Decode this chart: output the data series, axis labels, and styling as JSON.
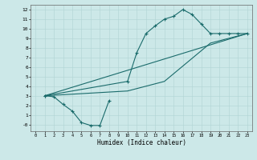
{
  "xlabel": "Humidex (Indice chaleur)",
  "bg_color": "#cce8e8",
  "grid_color": "#b0d4d4",
  "line_color": "#1a6b6b",
  "xlim": [
    -0.5,
    23.5
  ],
  "ylim": [
    -0.7,
    12.5
  ],
  "xticks": [
    0,
    1,
    2,
    3,
    4,
    5,
    6,
    7,
    8,
    9,
    10,
    11,
    12,
    13,
    14,
    15,
    16,
    17,
    18,
    19,
    20,
    21,
    22,
    23
  ],
  "yticks": [
    0,
    1,
    2,
    3,
    4,
    5,
    6,
    7,
    8,
    9,
    10,
    11,
    12
  ],
  "ytick_labels": [
    "-0",
    "1",
    "2",
    "3",
    "4",
    "5",
    "6",
    "7",
    "8",
    "9",
    "10",
    "11",
    "12"
  ],
  "line1_x": [
    1,
    2,
    3,
    4,
    5,
    6,
    7,
    8
  ],
  "line1_y": [
    3.0,
    2.9,
    2.1,
    1.4,
    0.2,
    -0.1,
    -0.1,
    2.5
  ],
  "line2_x": [
    1,
    10,
    11,
    12,
    13,
    14,
    15,
    16,
    17,
    18,
    19,
    20,
    21,
    22,
    23
  ],
  "line2_y": [
    3.0,
    4.5,
    7.5,
    9.5,
    10.3,
    11.0,
    11.3,
    12.0,
    11.5,
    10.5,
    9.5,
    9.5,
    9.5,
    9.5,
    9.5
  ],
  "line3_x": [
    1,
    23
  ],
  "line3_y": [
    3.0,
    9.5
  ],
  "line4_x": [
    1,
    10,
    14,
    19,
    23
  ],
  "line4_y": [
    3.0,
    3.5,
    4.5,
    8.5,
    9.5
  ],
  "marker": "+"
}
